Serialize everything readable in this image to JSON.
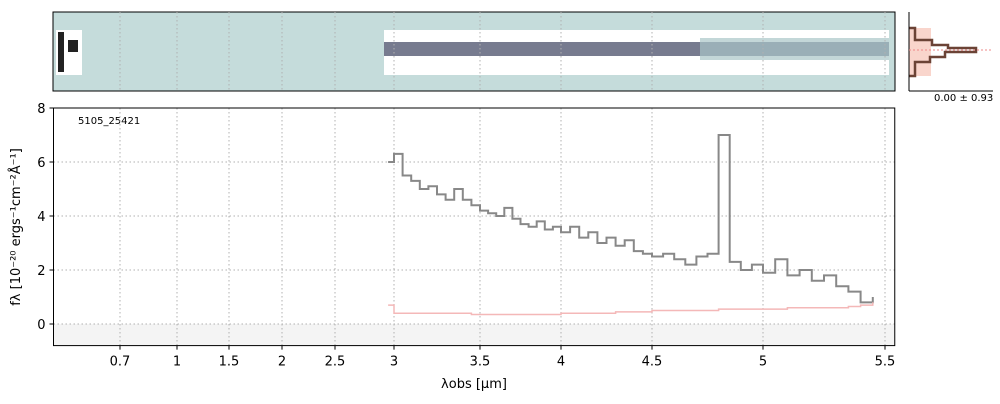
{
  "chart_data": {
    "type": "line",
    "annotation": "5105_25421",
    "hist_label": "0.00 ± 0.93",
    "xlabel": "λobs [μm]",
    "ylabel": "fλ [10⁻²⁰ ergs⁻¹cm⁻²Å⁻¹]",
    "xlim": [
      0.35,
      5.54
    ],
    "ylim": [
      -0.8,
      8
    ],
    "xticks": [
      0.7,
      1.0,
      1.5,
      2.0,
      2.5,
      3.0,
      3.5,
      4.0,
      4.5,
      5.0,
      5.5
    ],
    "yticks": [
      0,
      2,
      4,
      6,
      8
    ],
    "grid": true,
    "x": [
      2.95,
      3.0,
      3.05,
      3.1,
      3.15,
      3.2,
      3.25,
      3.3,
      3.35,
      3.4,
      3.45,
      3.5,
      3.55,
      3.6,
      3.65,
      3.7,
      3.75,
      3.8,
      3.85,
      3.9,
      3.95,
      4.0,
      4.05,
      4.1,
      4.15,
      4.2,
      4.25,
      4.3,
      4.35,
      4.4,
      4.45,
      4.5,
      4.55,
      4.6,
      4.65,
      4.7,
      4.75,
      4.8,
      4.85,
      4.9,
      4.95,
      5.0,
      5.05,
      5.1,
      5.15,
      5.2,
      5.25,
      5.3,
      5.35,
      5.4,
      5.45
    ],
    "series": [
      {
        "color": "#888888",
        "values": [
          6.0,
          6.3,
          5.5,
          5.3,
          5.0,
          5.1,
          4.8,
          4.6,
          5.0,
          4.6,
          4.4,
          4.2,
          4.1,
          4.0,
          4.3,
          3.9,
          3.7,
          3.6,
          3.8,
          3.5,
          3.6,
          3.4,
          3.6,
          3.2,
          3.4,
          3.0,
          3.2,
          2.9,
          3.1,
          2.7,
          2.6,
          2.5,
          2.6,
          2.4,
          2.2,
          2.5,
          2.6,
          7.0,
          2.3,
          2.0,
          2.2,
          1.9,
          2.4,
          1.8,
          2.0,
          1.6,
          1.8,
          1.4,
          1.2,
          0.8,
          1.0
        ]
      },
      {
        "color": "#f4b8b8",
        "values": [
          0.7,
          0.4,
          0.4,
          0.4,
          0.4,
          0.4,
          0.4,
          0.4,
          0.4,
          0.4,
          0.35,
          0.35,
          0.35,
          0.35,
          0.35,
          0.35,
          0.35,
          0.35,
          0.35,
          0.35,
          0.35,
          0.4,
          0.4,
          0.4,
          0.4,
          0.4,
          0.4,
          0.45,
          0.45,
          0.45,
          0.45,
          0.5,
          0.5,
          0.5,
          0.5,
          0.5,
          0.5,
          0.55,
          0.55,
          0.55,
          0.55,
          0.55,
          0.55,
          0.6,
          0.6,
          0.6,
          0.6,
          0.6,
          0.65,
          0.7,
          0.8
        ]
      }
    ]
  }
}
